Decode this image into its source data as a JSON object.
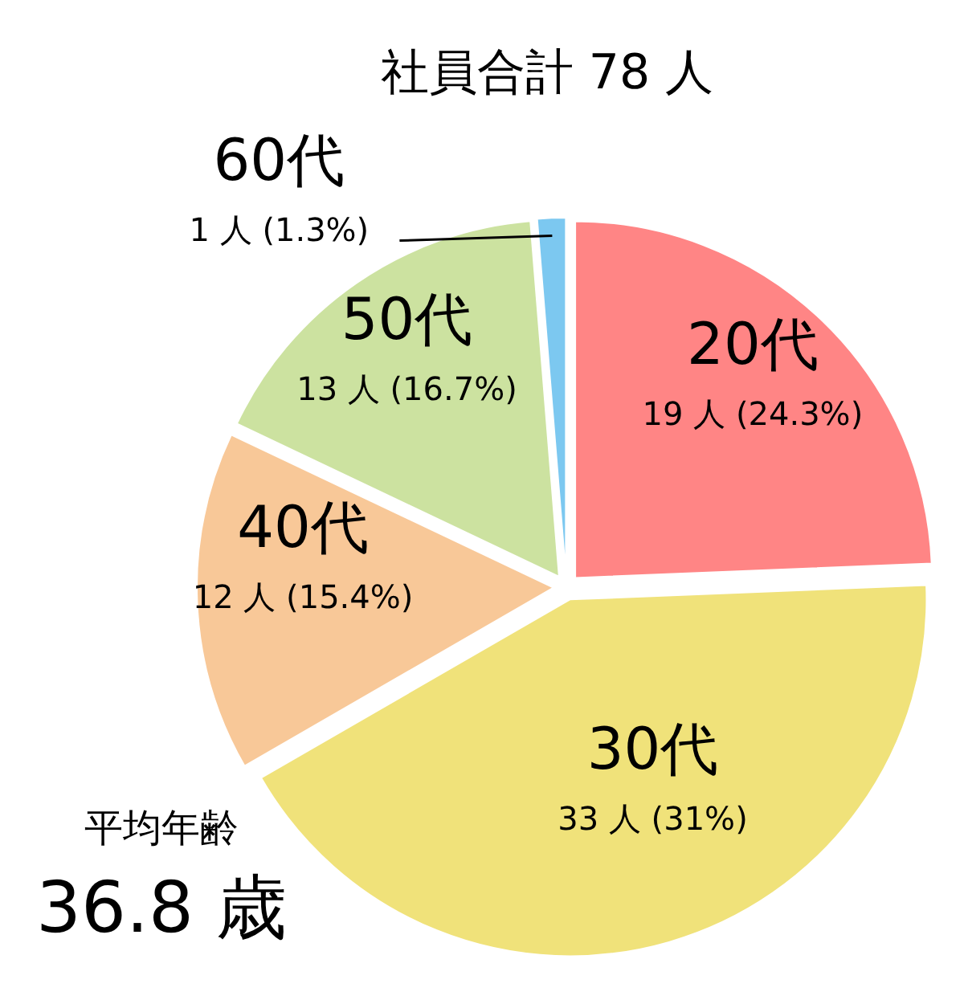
{
  "chart_data": {
    "type": "pie",
    "title": "社員合計 78 人",
    "categories": [
      "20代",
      "30代",
      "40代",
      "50代",
      "60代"
    ],
    "values": [
      19,
      33,
      12,
      13,
      1
    ],
    "value_labels": [
      "19 人 (24.3%)",
      "33 人 (31%)",
      "12 人 (15.4%)",
      "13 人 (16.7%)",
      "1 人 (1.3%)"
    ],
    "colors": [
      "#ff8585",
      "#f0e27a",
      "#f8c898",
      "#cce2a0",
      "#7cc8f0"
    ],
    "annotations": [
      "平均年齢",
      "36.8 歳"
    ]
  }
}
